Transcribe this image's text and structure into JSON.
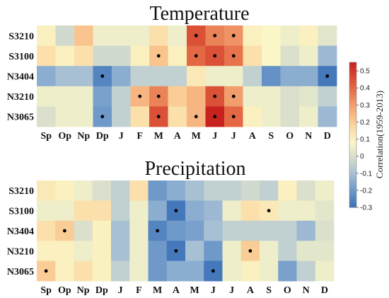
{
  "chart_data": {
    "type": "heatmap",
    "columns": [
      "Sp",
      "Op",
      "Np",
      "Dp",
      "J",
      "F",
      "M",
      "A",
      "M",
      "J",
      "J",
      "A",
      "S",
      "O",
      "N",
      "D"
    ],
    "colorbar": {
      "label": "Correlation(1959-2013)",
      "ticks": [
        0.5,
        0.4,
        0.3,
        0.2,
        0.1,
        0,
        -0.1,
        -0.2,
        -0.3
      ],
      "tick_labels": [
        "0.5",
        "0.4",
        "0.3",
        "0.2",
        "0.1",
        "0",
        "-0.1",
        "-0.2",
        "-0.3"
      ],
      "range": [
        -0.3,
        0.55
      ]
    },
    "panels": [
      {
        "title": "Temperature",
        "rows": [
          "S3210",
          "S3100",
          "N3404",
          "N3210",
          "N3065"
        ],
        "values": [
          [
            0.1,
            -0.02,
            0.22,
            0.05,
            0.05,
            0.05,
            0.15,
            0.05,
            0.45,
            0.35,
            0.32,
            0.1,
            0.08,
            0.05,
            0.1,
            0.02
          ],
          [
            0.15,
            0.1,
            0.15,
            -0.02,
            -0.02,
            0.1,
            0.22,
            0.1,
            0.4,
            0.45,
            0.38,
            0.15,
            0.08,
            0.0,
            0.05,
            -0.12
          ],
          [
            -0.15,
            -0.1,
            -0.1,
            -0.25,
            -0.15,
            -0.05,
            -0.05,
            -0.05,
            0.12,
            0.05,
            0.05,
            -0.05,
            -0.22,
            -0.15,
            -0.15,
            -0.28
          ],
          [
            0.05,
            0.05,
            0.05,
            -0.18,
            -0.05,
            0.25,
            0.35,
            0.2,
            0.25,
            0.45,
            0.3,
            0.05,
            0.05,
            0.0,
            0.02,
            -0.05
          ],
          [
            0.0,
            0.05,
            0.05,
            -0.2,
            -0.05,
            0.15,
            0.45,
            0.15,
            0.25,
            0.55,
            0.4,
            0.1,
            0.05,
            0.0,
            0.05,
            -0.12
          ]
        ],
        "significant": [
          [
            8,
            9,
            10
          ],
          [
            6,
            8,
            9,
            10
          ],
          [
            3,
            15
          ],
          [
            5,
            6,
            9,
            10
          ],
          [
            3,
            6,
            8,
            9,
            10
          ]
        ]
      },
      {
        "title": "Precipitation",
        "rows": [
          "S3210",
          "S3100",
          "N3404",
          "N3210",
          "N3065"
        ],
        "values": [
          [
            0.12,
            0.1,
            0.05,
            0.0,
            -0.05,
            0.15,
            -0.2,
            -0.15,
            -0.1,
            -0.05,
            -0.05,
            -0.02,
            -0.05,
            0.1,
            0.0,
            0.05
          ],
          [
            0.05,
            0.05,
            0.15,
            0.15,
            -0.05,
            0.05,
            -0.15,
            -0.28,
            -0.15,
            -0.12,
            0.05,
            0.15,
            0.12,
            0.05,
            0.05,
            0.02
          ],
          [
            0.15,
            0.2,
            0.0,
            0.1,
            -0.1,
            0.05,
            -0.25,
            -0.2,
            -0.18,
            -0.1,
            -0.05,
            -0.05,
            -0.05,
            -0.05,
            -0.12,
            0.0
          ],
          [
            0.1,
            0.1,
            0.05,
            0.1,
            -0.1,
            0.05,
            -0.2,
            -0.28,
            -0.1,
            -0.2,
            0.05,
            0.2,
            0.05,
            -0.05,
            0.02,
            0.02
          ],
          [
            0.2,
            0.1,
            0.15,
            0.1,
            -0.05,
            0.05,
            -0.2,
            -0.15,
            -0.15,
            -0.28,
            0.05,
            0.1,
            0.05,
            -0.18,
            -0.05,
            0.05
          ]
        ],
        "significant": [
          [],
          [
            7,
            12
          ],
          [
            1,
            6
          ],
          [
            7,
            11
          ],
          [
            0,
            9
          ]
        ]
      }
    ]
  }
}
